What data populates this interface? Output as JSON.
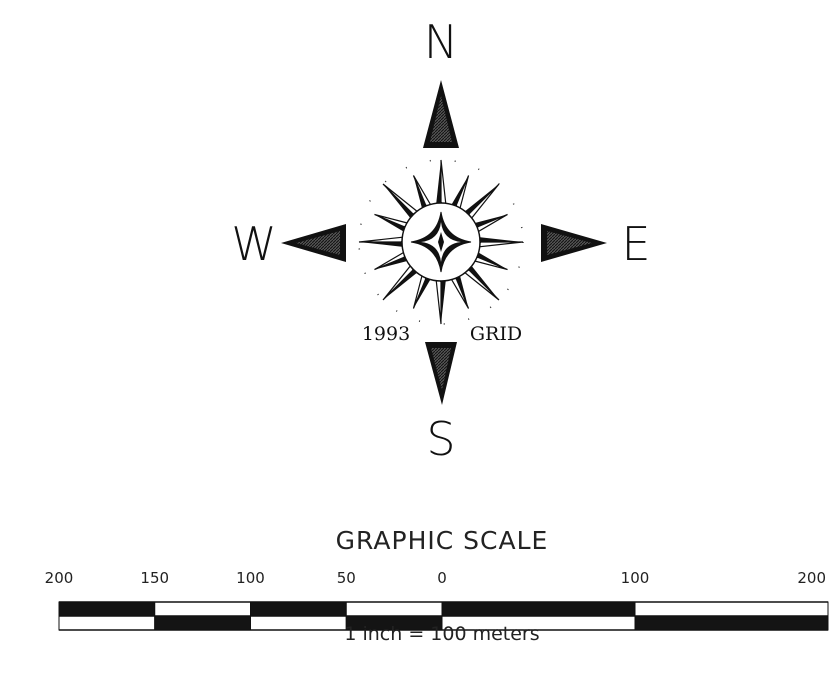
{
  "compass": {
    "north": "N",
    "south": "S",
    "east": "E",
    "west": "W",
    "year_label": "1993",
    "grid_label": "GRID",
    "ink_color": "#111111"
  },
  "scale": {
    "title": "GRAPHIC SCALE",
    "ratio_text": "1 inch = 100 meters",
    "ticks": [
      {
        "label": "200",
        "value": -200
      },
      {
        "label": "150",
        "value": -150
      },
      {
        "label": "100",
        "value": -100
      },
      {
        "label": "50",
        "value": -50
      },
      {
        "label": "0",
        "value": 0
      },
      {
        "label": "100",
        "value": 100
      },
      {
        "label": "200",
        "value": 200
      }
    ]
  }
}
